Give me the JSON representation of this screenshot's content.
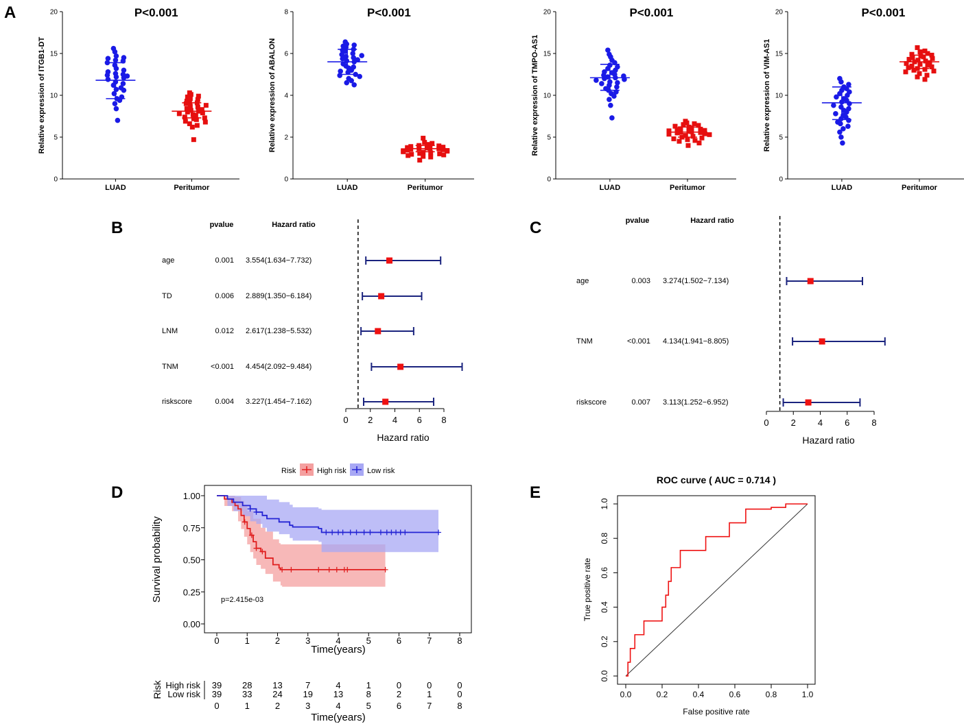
{
  "panel_labels": {
    "A": "A",
    "B": "B",
    "C": "C",
    "D": "D",
    "E": "E"
  },
  "colors": {
    "luad": "#1a1ae6",
    "peri": "#e60f0f",
    "forest_line": "#1a237e",
    "forest_box": "#ee1111",
    "km_high": "#e01f1f",
    "km_low": "#2424d4",
    "km_high_fill": "#f4a0a0",
    "km_low_fill": "#a8a8f4",
    "roc": "#ee1111"
  },
  "chart_data": [
    {
      "type": "scatter",
      "id": "A1",
      "title": "P<0.001",
      "ylabel": "Relative expression of ITGB1-DT",
      "categories": [
        "LUAD",
        "Peritumor"
      ],
      "ylim": [
        0,
        20
      ],
      "yticks": [
        0,
        5,
        10,
        15,
        20
      ],
      "series": [
        {
          "name": "LUAD",
          "mean": 11.8,
          "sd_low": 9.6,
          "sd_high": 13.9,
          "values": [
            15.6,
            15.2,
            14.7,
            14.5,
            14.4,
            14.2,
            14.1,
            13.9,
            13.6,
            13.2,
            13.0,
            12.8,
            12.6,
            12.5,
            12.4,
            12.3,
            12.2,
            12.1,
            11.9,
            11.6,
            11.4,
            11.2,
            10.9,
            10.7,
            10.6,
            10.2,
            9.8,
            9.6,
            9.4,
            9.0,
            8.4,
            7.0
          ]
        },
        {
          "name": "Peritumor",
          "mean": 8.1,
          "sd_low": 7.3,
          "sd_high": 9.1,
          "values": [
            10.3,
            10.1,
            9.9,
            9.8,
            9.6,
            9.5,
            9.3,
            9.2,
            9.1,
            9.0,
            8.8,
            8.7,
            8.6,
            8.4,
            8.3,
            8.2,
            8.1,
            8.0,
            7.9,
            7.8,
            7.7,
            7.6,
            7.4,
            7.3,
            7.2,
            7.1,
            6.9,
            6.8,
            6.6,
            6.4,
            6.2,
            4.7
          ]
        }
      ]
    },
    {
      "type": "scatter",
      "id": "A2",
      "title": "P<0.001",
      "ylabel": "Relative expression of ABALON",
      "categories": [
        "LUAD",
        "Peritumor"
      ],
      "ylim": [
        0,
        8
      ],
      "yticks": [
        0,
        2,
        4,
        6,
        8
      ],
      "series": [
        {
          "name": "LUAD",
          "mean": 5.6,
          "sd_low": 5.0,
          "sd_high": 6.2,
          "values": [
            6.55,
            6.45,
            6.4,
            6.35,
            6.3,
            6.2,
            6.15,
            6.1,
            6.0,
            5.95,
            5.9,
            5.85,
            5.8,
            5.75,
            5.7,
            5.65,
            5.6,
            5.5,
            5.4,
            5.35,
            5.3,
            5.2,
            5.15,
            5.1,
            5.0,
            4.95,
            4.9,
            4.8,
            4.7,
            4.6,
            4.5
          ]
        },
        {
          "name": "Peritumor",
          "mean": 1.45,
          "sd_low": 1.3,
          "sd_high": 1.6,
          "values": [
            1.95,
            1.75,
            1.7,
            1.65,
            1.62,
            1.6,
            1.58,
            1.55,
            1.52,
            1.5,
            1.48,
            1.46,
            1.45,
            1.44,
            1.42,
            1.4,
            1.38,
            1.36,
            1.35,
            1.33,
            1.3,
            1.28,
            1.25,
            1.22,
            1.2,
            1.18,
            1.15,
            1.12,
            1.08,
            1.05,
            0.9
          ]
        }
      ]
    },
    {
      "type": "scatter",
      "id": "A3",
      "title": "P<0.001",
      "ylabel": "Relative expression of TMPO-AS1",
      "categories": [
        "LUAD",
        "Peritumor"
      ],
      "ylim": [
        0,
        20
      ],
      "yticks": [
        0,
        5,
        10,
        15,
        20
      ],
      "series": [
        {
          "name": "LUAD",
          "mean": 12.1,
          "sd_low": 10.6,
          "sd_high": 13.7,
          "values": [
            15.4,
            14.9,
            14.6,
            14.2,
            13.9,
            13.6,
            13.4,
            13.2,
            13.0,
            12.8,
            12.7,
            12.5,
            12.4,
            12.3,
            12.2,
            12.1,
            12.0,
            11.9,
            11.8,
            11.6,
            11.5,
            11.4,
            11.2,
            11.0,
            10.8,
            10.6,
            10.4,
            10.2,
            9.9,
            9.5,
            8.8,
            7.3
          ]
        },
        {
          "name": "Peritumor",
          "mean": 5.6,
          "sd_low": 5.0,
          "sd_high": 6.2,
          "values": [
            6.9,
            6.7,
            6.6,
            6.5,
            6.4,
            6.3,
            6.2,
            6.1,
            6.0,
            5.95,
            5.9,
            5.8,
            5.75,
            5.7,
            5.65,
            5.6,
            5.55,
            5.5,
            5.4,
            5.35,
            5.3,
            5.2,
            5.1,
            5.0,
            4.9,
            4.8,
            4.7,
            4.6,
            4.5,
            4.3,
            4.0
          ]
        }
      ]
    },
    {
      "type": "scatter",
      "id": "A4",
      "title": "P<0.001",
      "ylabel": "Relative expression of VIM-AS1",
      "categories": [
        "LUAD",
        "Peritumor"
      ],
      "ylim": [
        0,
        20
      ],
      "yticks": [
        0,
        5,
        10,
        15,
        20
      ],
      "series": [
        {
          "name": "LUAD",
          "mean": 9.1,
          "sd_low": 7.1,
          "sd_high": 11.0,
          "values": [
            12.0,
            11.6,
            11.3,
            11.0,
            10.8,
            10.6,
            10.4,
            10.2,
            10.0,
            9.8,
            9.6,
            9.4,
            9.2,
            9.0,
            8.8,
            8.6,
            8.4,
            8.2,
            8.0,
            7.8,
            7.6,
            7.4,
            7.2,
            7.0,
            6.8,
            6.6,
            6.3,
            6.0,
            5.6,
            5.0,
            4.3
          ]
        },
        {
          "name": "Peritumor",
          "mean": 14.0,
          "sd_low": 13.2,
          "sd_high": 14.8,
          "values": [
            15.7,
            15.3,
            15.2,
            15.0,
            14.9,
            14.8,
            14.7,
            14.6,
            14.5,
            14.4,
            14.3,
            14.2,
            14.1,
            14.0,
            13.9,
            13.8,
            13.7,
            13.6,
            13.5,
            13.4,
            13.3,
            13.2,
            13.1,
            13.0,
            12.9,
            12.8,
            12.6,
            12.4,
            12.2,
            11.9
          ]
        }
      ]
    },
    {
      "type": "forest",
      "id": "B",
      "xlabel": "Hazard ratio",
      "head_p": "pvalue",
      "head_hr": "Hazard ratio",
      "xlim": [
        0,
        8
      ],
      "xticks": [
        0,
        2,
        4,
        6,
        8
      ],
      "ref": 1,
      "rows": [
        {
          "name": "age",
          "p": "0.001",
          "hr_text": "3.554(1.634−7.732)",
          "hr": 3.554,
          "lo": 1.634,
          "hi": 7.732
        },
        {
          "name": "TD",
          "p": "0.006",
          "hr_text": "2.889(1.350−6.184)",
          "hr": 2.889,
          "lo": 1.35,
          "hi": 6.184
        },
        {
          "name": "LNM",
          "p": "0.012",
          "hr_text": "2.617(1.238−5.532)",
          "hr": 2.617,
          "lo": 1.238,
          "hi": 5.532
        },
        {
          "name": "TNM",
          "p": "<0.001",
          "hr_text": "4.454(2.092−9.484)",
          "hr": 4.454,
          "lo": 2.092,
          "hi": 9.484
        },
        {
          "name": "riskscore",
          "p": "0.004",
          "hr_text": "3.227(1.454−7.162)",
          "hr": 3.227,
          "lo": 1.454,
          "hi": 7.162
        }
      ]
    },
    {
      "type": "forest",
      "id": "C",
      "xlabel": "Hazard ratio",
      "head_p": "pvalue",
      "head_hr": "Hazard ratio",
      "xlim": [
        0,
        8
      ],
      "xticks": [
        0,
        2,
        4,
        6,
        8
      ],
      "ref": 1,
      "rows": [
        {
          "name": "age",
          "p": "0.003",
          "hr_text": "3.274(1.502−7.134)",
          "hr": 3.274,
          "lo": 1.502,
          "hi": 7.134
        },
        {
          "name": "TNM",
          "p": "<0.001",
          "hr_text": "4.134(1.941−8.805)",
          "hr": 4.134,
          "lo": 1.941,
          "hi": 8.805
        },
        {
          "name": "riskscore",
          "p": "0.007",
          "hr_text": "3.113(1.252−6.952)",
          "hr": 3.113,
          "lo": 1.252,
          "hi": 6.952
        }
      ]
    },
    {
      "type": "line",
      "id": "D",
      "subtype": "kaplan-meier",
      "legend_title": "Risk",
      "xlabel": "Time(years)",
      "ylabel": "Survival probability",
      "xlim": [
        0,
        8
      ],
      "xticks": [
        0,
        1,
        2,
        3,
        4,
        5,
        6,
        7,
        8
      ],
      "ylim": [
        0,
        1
      ],
      "yticks": [
        "0.00",
        "0.25",
        "0.50",
        "0.75",
        "1.00"
      ],
      "pvalue": "p=2.415e-03",
      "series": [
        {
          "name": "High risk",
          "steps": [
            [
              0,
              1.0
            ],
            [
              0.25,
              0.974
            ],
            [
              0.5,
              0.948
            ],
            [
              0.6,
              0.923
            ],
            [
              0.7,
              0.897
            ],
            [
              0.8,
              0.846
            ],
            [
              0.9,
              0.795
            ],
            [
              1.0,
              0.744
            ],
            [
              1.1,
              0.692
            ],
            [
              1.2,
              0.641
            ],
            [
              1.3,
              0.59
            ],
            [
              1.45,
              0.564
            ],
            [
              1.6,
              0.513
            ],
            [
              1.85,
              0.462
            ],
            [
              2.05,
              0.436
            ],
            [
              2.1,
              0.423
            ],
            [
              5.55,
              0.423
            ]
          ],
          "ci_upper": [
            [
              0,
              1.0
            ],
            [
              0.25,
              1.0
            ],
            [
              0.6,
              0.99
            ],
            [
              0.8,
              0.96
            ],
            [
              0.9,
              0.92
            ],
            [
              1.0,
              0.88
            ],
            [
              1.2,
              0.82
            ],
            [
              1.45,
              0.75
            ],
            [
              1.6,
              0.72
            ],
            [
              1.85,
              0.66
            ],
            [
              2.05,
              0.63
            ],
            [
              2.1,
              0.62
            ],
            [
              5.55,
              0.62
            ]
          ],
          "ci_lower": [
            [
              0,
              1.0
            ],
            [
              0.25,
              0.92
            ],
            [
              0.5,
              0.88
            ],
            [
              0.7,
              0.8
            ],
            [
              0.8,
              0.74
            ],
            [
              0.9,
              0.68
            ],
            [
              1.0,
              0.62
            ],
            [
              1.1,
              0.56
            ],
            [
              1.2,
              0.51
            ],
            [
              1.3,
              0.46
            ],
            [
              1.45,
              0.43
            ],
            [
              1.6,
              0.39
            ],
            [
              1.85,
              0.33
            ],
            [
              2.1,
              0.3
            ],
            [
              2.15,
              0.29
            ],
            [
              5.55,
              0.29
            ]
          ],
          "censored": [
            0.92,
            1.15,
            1.3,
            1.5,
            2.15,
            2.45,
            3.35,
            3.7,
            3.95,
            4.2,
            4.3,
            5.55
          ]
        },
        {
          "name": "Low risk",
          "steps": [
            [
              0,
              1.0
            ],
            [
              0.35,
              0.974
            ],
            [
              0.55,
              0.949
            ],
            [
              0.85,
              0.923
            ],
            [
              1.1,
              0.897
            ],
            [
              1.3,
              0.872
            ],
            [
              1.5,
              0.846
            ],
            [
              1.65,
              0.821
            ],
            [
              2.05,
              0.795
            ],
            [
              2.4,
              0.769
            ],
            [
              2.5,
              0.756
            ],
            [
              3.35,
              0.744
            ],
            [
              3.45,
              0.714
            ],
            [
              7.3,
              0.714
            ]
          ],
          "ci_upper": [
            [
              0,
              1.0
            ],
            [
              1.3,
              1.0
            ],
            [
              1.65,
              0.97
            ],
            [
              2.05,
              0.95
            ],
            [
              2.4,
              0.93
            ],
            [
              2.5,
              0.91
            ],
            [
              3.35,
              0.9
            ],
            [
              3.45,
              0.89
            ],
            [
              7.3,
              0.89
            ]
          ],
          "ci_lower": [
            [
              0,
              1.0
            ],
            [
              0.35,
              0.92
            ],
            [
              0.55,
              0.88
            ],
            [
              0.85,
              0.84
            ],
            [
              1.1,
              0.8
            ],
            [
              1.3,
              0.78
            ],
            [
              1.5,
              0.75
            ],
            [
              1.65,
              0.72
            ],
            [
              2.05,
              0.7
            ],
            [
              2.4,
              0.67
            ],
            [
              2.5,
              0.65
            ],
            [
              3.35,
              0.64
            ],
            [
              3.45,
              0.56
            ],
            [
              7.3,
              0.56
            ]
          ],
          "censored": [
            1.1,
            1.3,
            3.6,
            3.8,
            4.0,
            4.15,
            4.4,
            4.6,
            4.85,
            5.05,
            5.4,
            5.6,
            5.75,
            5.9,
            6.05,
            6.2,
            7.3
          ]
        }
      ],
      "risk_table": {
        "title": "Risk",
        "xlabel": "Time(years)",
        "rows": [
          {
            "name": "High risk",
            "counts": [
              39,
              28,
              13,
              7,
              4,
              1,
              0,
              0,
              0
            ]
          },
          {
            "name": "Low risk",
            "counts": [
              39,
              33,
              24,
              19,
              13,
              8,
              2,
              1,
              0
            ]
          }
        ]
      }
    },
    {
      "type": "line",
      "id": "E",
      "subtype": "roc",
      "title": "ROC curve ( AUC =  0.714 )",
      "xlabel": "False positive rate",
      "ylabel": "True positive rate",
      "xlim": [
        0,
        1
      ],
      "ylim": [
        0,
        1
      ],
      "xticks": [
        "0.0",
        "0.2",
        "0.4",
        "0.6",
        "0.8",
        "1.0"
      ],
      "yticks": [
        "0.0",
        "0.2",
        "0.4",
        "0.6",
        "0.8",
        "1.0"
      ],
      "points": [
        [
          0,
          0
        ],
        [
          0.012,
          0
        ],
        [
          0.012,
          0.027
        ],
        [
          0.012,
          0.08
        ],
        [
          0.025,
          0.08
        ],
        [
          0.025,
          0.16
        ],
        [
          0.05,
          0.16
        ],
        [
          0.05,
          0.24
        ],
        [
          0.1,
          0.24
        ],
        [
          0.1,
          0.32
        ],
        [
          0.2,
          0.32
        ],
        [
          0.2,
          0.4
        ],
        [
          0.22,
          0.4
        ],
        [
          0.22,
          0.47
        ],
        [
          0.235,
          0.47
        ],
        [
          0.235,
          0.55
        ],
        [
          0.25,
          0.55
        ],
        [
          0.25,
          0.63
        ],
        [
          0.3,
          0.63
        ],
        [
          0.3,
          0.73
        ],
        [
          0.33,
          0.73
        ],
        [
          0.33,
          0.73
        ],
        [
          0.44,
          0.73
        ],
        [
          0.44,
          0.81
        ],
        [
          0.57,
          0.81
        ],
        [
          0.57,
          0.89
        ],
        [
          0.66,
          0.89
        ],
        [
          0.66,
          0.97
        ],
        [
          0.8,
          0.97
        ],
        [
          0.8,
          0.98
        ],
        [
          0.88,
          0.98
        ],
        [
          0.88,
          1.0
        ],
        [
          1.0,
          1.0
        ]
      ]
    }
  ]
}
